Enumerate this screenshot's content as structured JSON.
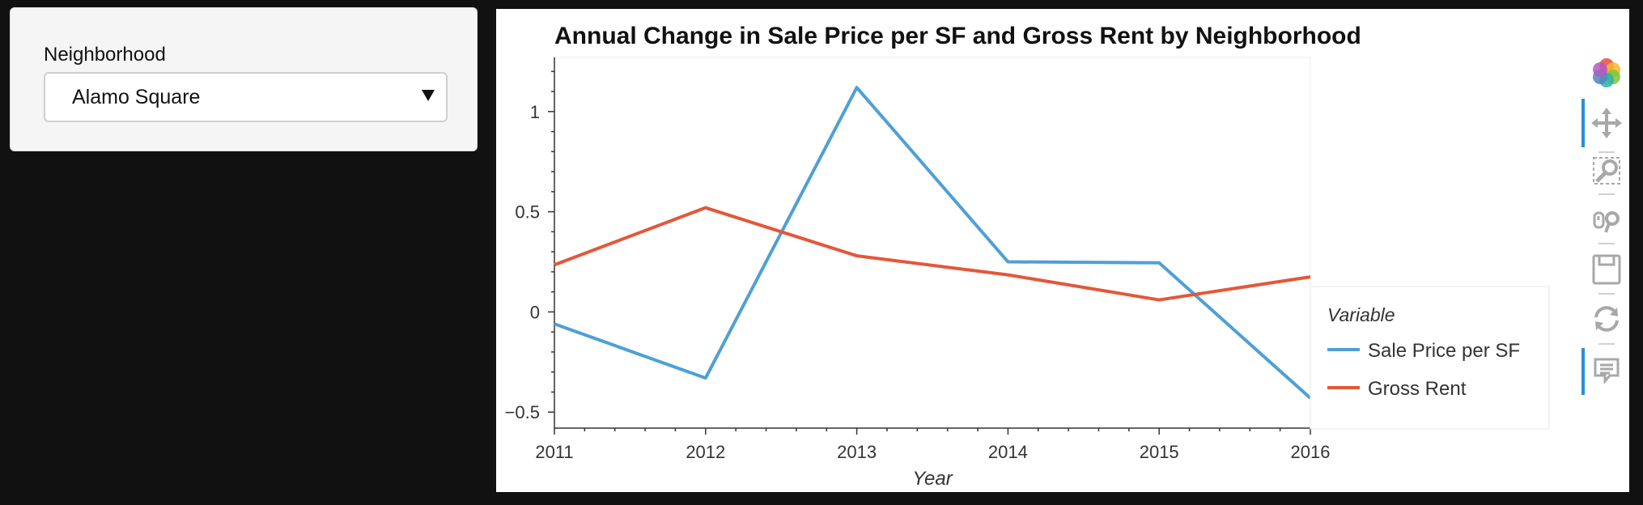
{
  "widget": {
    "label": "Neighborhood",
    "selected": "Alamo Square"
  },
  "toolbar": {
    "tools": [
      {
        "name": "bokeh-logo-icon",
        "active": false
      },
      {
        "name": "pan-icon",
        "active": true
      },
      {
        "name": "box-zoom-icon",
        "active": false
      },
      {
        "name": "wheel-zoom-icon",
        "active": false
      },
      {
        "name": "save-icon",
        "active": false
      },
      {
        "name": "reset-icon",
        "active": false
      },
      {
        "name": "hover-icon",
        "active": true
      }
    ]
  },
  "chart_data": {
    "type": "line",
    "title": "Annual Change in Sale Price per SF and Gross Rent by Neighborhood",
    "xlabel": "Year",
    "ylabel": "",
    "x": [
      2011,
      2012,
      2013,
      2014,
      2015,
      2016
    ],
    "xlim": [
      2011,
      2016
    ],
    "ylim": [
      -0.58,
      1.27
    ],
    "xticks": [
      "2011",
      "2012",
      "2013",
      "2014",
      "2015",
      "2016"
    ],
    "yticks": [
      {
        "value": -0.5,
        "label": "−0.5"
      },
      {
        "value": 0,
        "label": "0"
      },
      {
        "value": 0.5,
        "label": "0.5"
      },
      {
        "value": 1,
        "label": "1"
      }
    ],
    "legend": {
      "title": "Variable",
      "placement": "right"
    },
    "series": [
      {
        "name": "Sale Price per SF",
        "color": "#4f9fd6",
        "values": [
          -0.06,
          -0.33,
          1.12,
          0.25,
          0.245,
          -0.43
        ]
      },
      {
        "name": "Gross Rent",
        "color": "#e4573a",
        "values": [
          0.235,
          0.52,
          0.28,
          0.185,
          0.06,
          0.175
        ]
      }
    ]
  }
}
